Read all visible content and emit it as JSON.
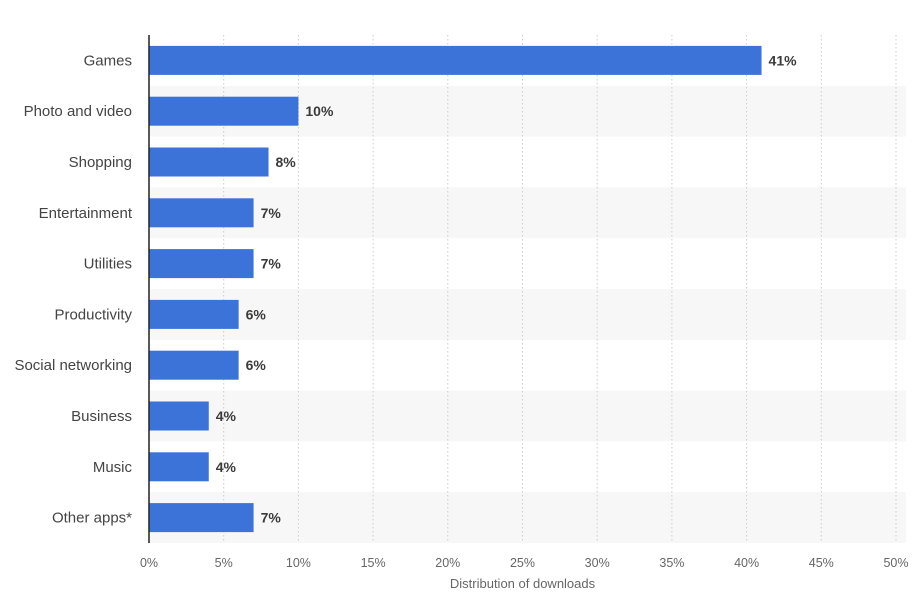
{
  "colors": {
    "bar": "#3b73d9",
    "band": "#f7f7f7",
    "grid": "#cccccc",
    "axis": "#222222"
  },
  "chart_data": {
    "type": "bar",
    "orientation": "horizontal",
    "categories": [
      "Games",
      "Photo and video",
      "Shopping",
      "Entertainment",
      "Utilities",
      "Productivity",
      "Social networking",
      "Business",
      "Music",
      "Other apps*"
    ],
    "values": [
      41,
      10,
      8,
      7,
      7,
      6,
      6,
      4,
      4,
      7
    ],
    "value_labels": [
      "41%",
      "10%",
      "8%",
      "7%",
      "7%",
      "6%",
      "6%",
      "4%",
      "4%",
      "7%"
    ],
    "title": "",
    "xlabel": "Distribution of downloads",
    "ylabel": "",
    "xlim": [
      0,
      50
    ],
    "x_ticks": [
      0,
      5,
      10,
      15,
      20,
      25,
      30,
      35,
      40,
      45,
      50
    ],
    "x_tick_labels": [
      "0%",
      "5%",
      "10%",
      "15%",
      "20%",
      "25%",
      "30%",
      "35%",
      "40%",
      "45%",
      "50%"
    ],
    "grid": true,
    "legend": "none"
  }
}
